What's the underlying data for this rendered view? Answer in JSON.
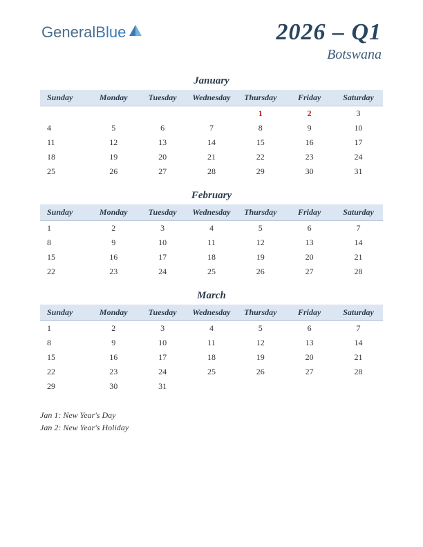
{
  "logo": {
    "text1": "General",
    "text2": "Blue"
  },
  "title": "2026 – Q1",
  "subtitle": "Botswana",
  "colors": {
    "header_bg": "#dce6f2",
    "header_border": "#b8c8dc",
    "title_color": "#2a4560",
    "holiday_color": "#c22020"
  },
  "day_headers": [
    "Sunday",
    "Monday",
    "Tuesday",
    "Wednesday",
    "Thursday",
    "Friday",
    "Saturday"
  ],
  "months": [
    {
      "name": "January",
      "weeks": [
        [
          null,
          null,
          null,
          null,
          {
            "d": 1,
            "h": true
          },
          {
            "d": 2,
            "h": true
          },
          {
            "d": 3
          }
        ],
        [
          {
            "d": 4
          },
          {
            "d": 5
          },
          {
            "d": 6
          },
          {
            "d": 7
          },
          {
            "d": 8
          },
          {
            "d": 9
          },
          {
            "d": 10
          }
        ],
        [
          {
            "d": 11
          },
          {
            "d": 12
          },
          {
            "d": 13
          },
          {
            "d": 14
          },
          {
            "d": 15
          },
          {
            "d": 16
          },
          {
            "d": 17
          }
        ],
        [
          {
            "d": 18
          },
          {
            "d": 19
          },
          {
            "d": 20
          },
          {
            "d": 21
          },
          {
            "d": 22
          },
          {
            "d": 23
          },
          {
            "d": 24
          }
        ],
        [
          {
            "d": 25
          },
          {
            "d": 26
          },
          {
            "d": 27
          },
          {
            "d": 28
          },
          {
            "d": 29
          },
          {
            "d": 30
          },
          {
            "d": 31
          }
        ]
      ]
    },
    {
      "name": "February",
      "weeks": [
        [
          {
            "d": 1
          },
          {
            "d": 2
          },
          {
            "d": 3
          },
          {
            "d": 4
          },
          {
            "d": 5
          },
          {
            "d": 6
          },
          {
            "d": 7
          }
        ],
        [
          {
            "d": 8
          },
          {
            "d": 9
          },
          {
            "d": 10
          },
          {
            "d": 11
          },
          {
            "d": 12
          },
          {
            "d": 13
          },
          {
            "d": 14
          }
        ],
        [
          {
            "d": 15
          },
          {
            "d": 16
          },
          {
            "d": 17
          },
          {
            "d": 18
          },
          {
            "d": 19
          },
          {
            "d": 20
          },
          {
            "d": 21
          }
        ],
        [
          {
            "d": 22
          },
          {
            "d": 23
          },
          {
            "d": 24
          },
          {
            "d": 25
          },
          {
            "d": 26
          },
          {
            "d": 27
          },
          {
            "d": 28
          }
        ]
      ]
    },
    {
      "name": "March",
      "weeks": [
        [
          {
            "d": 1
          },
          {
            "d": 2
          },
          {
            "d": 3
          },
          {
            "d": 4
          },
          {
            "d": 5
          },
          {
            "d": 6
          },
          {
            "d": 7
          }
        ],
        [
          {
            "d": 8
          },
          {
            "d": 9
          },
          {
            "d": 10
          },
          {
            "d": 11
          },
          {
            "d": 12
          },
          {
            "d": 13
          },
          {
            "d": 14
          }
        ],
        [
          {
            "d": 15
          },
          {
            "d": 16
          },
          {
            "d": 17
          },
          {
            "d": 18
          },
          {
            "d": 19
          },
          {
            "d": 20
          },
          {
            "d": 21
          }
        ],
        [
          {
            "d": 22
          },
          {
            "d": 23
          },
          {
            "d": 24
          },
          {
            "d": 25
          },
          {
            "d": 26
          },
          {
            "d": 27
          },
          {
            "d": 28
          }
        ],
        [
          {
            "d": 29
          },
          {
            "d": 30
          },
          {
            "d": 31
          },
          null,
          null,
          null,
          null
        ]
      ]
    }
  ],
  "holidays": [
    "Jan 1: New Year's Day",
    "Jan 2: New Year's Holiday"
  ]
}
